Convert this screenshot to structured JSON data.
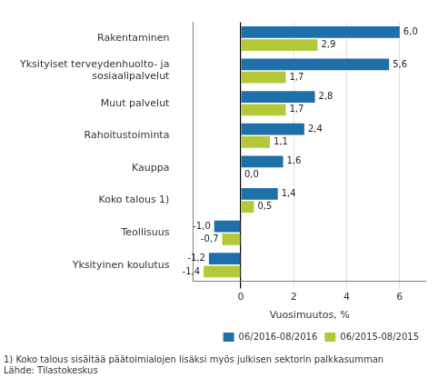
{
  "chart_data": {
    "type": "bar",
    "orientation": "horizontal",
    "categories": [
      "Rakentaminen",
      "Yksityiset terveydenhuolto- ja\nsosiaalipalvelut",
      "Muut palvelut",
      "Rahoitustoiminta",
      "Kauppa",
      "Koko talous 1)",
      "Teollisuus",
      "Yksityinen koulutus"
    ],
    "series": [
      {
        "name": "06/2016-08/2016",
        "color": "#1f6fa8",
        "values": [
          6.0,
          5.6,
          2.8,
          2.4,
          1.6,
          1.4,
          -1.0,
          -1.2
        ],
        "value_labels": [
          "6,0",
          "5,6",
          "2,8",
          "2,4",
          "1,6",
          "1,4",
          "-1,0",
          "-1,2"
        ]
      },
      {
        "name": "06/2015-08/2015",
        "color": "#b5c83a",
        "values": [
          2.9,
          1.7,
          1.7,
          1.1,
          0.0,
          0.5,
          -0.7,
          -1.4
        ],
        "value_labels": [
          "2,9",
          "1,7",
          "1,7",
          "1,1",
          "0,0",
          "0,5",
          "-0,7",
          "-1,4"
        ]
      }
    ],
    "xlabel": "Vuosimuutos, %",
    "xlim": [
      -1.8,
      7.0
    ],
    "xticks": [
      0,
      2,
      4,
      6
    ],
    "grid": true,
    "legend": "lower right",
    "data_labels": true,
    "annotations": [
      "1) Koko talous sisältää päätoimialojen lisäksi myös julkisen sektorin palkkasumman",
      "Lähde: Tilastokeskus"
    ]
  }
}
